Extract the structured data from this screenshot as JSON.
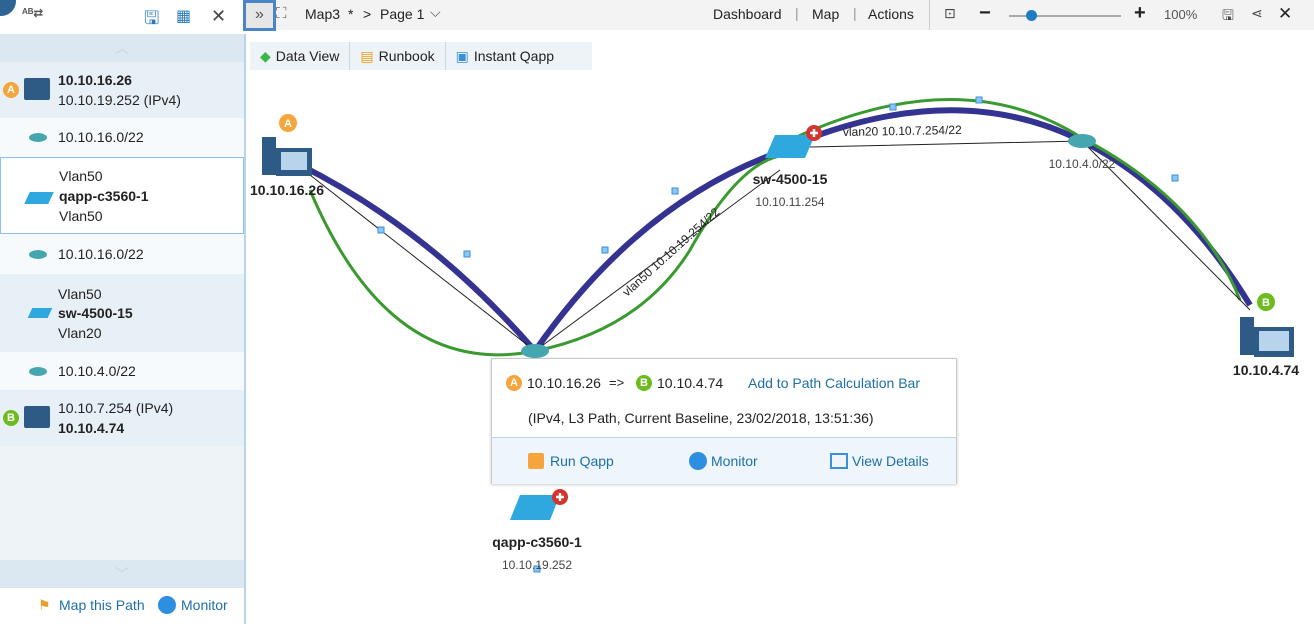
{
  "left_panel": {
    "items": [
      {
        "type": "device",
        "badge": "A",
        "line1": "10.10.16.26",
        "line2": "10.10.19.252 (IPv4)"
      },
      {
        "type": "subnet",
        "label": "10.10.16.0/22"
      },
      {
        "type": "switch",
        "line1": "Vlan50",
        "line2": "qapp-c3560-1",
        "line3": "Vlan50"
      },
      {
        "type": "subnet",
        "label": "10.10.16.0/22"
      },
      {
        "type": "switch",
        "line1": "Vlan50",
        "line2": "sw-4500-15",
        "line3": "Vlan20"
      },
      {
        "type": "subnet",
        "label": "10.10.4.0/22"
      },
      {
        "type": "device",
        "badge": "B",
        "line1": "10.10.7.254 (IPv4)",
        "line2": "10.10.4.74"
      }
    ],
    "footer": {
      "map_path": "Map this Path",
      "monitor": "Monitor"
    }
  },
  "topbar": {
    "map": "Map3",
    "modified": "*",
    "sep": ">",
    "page": "Page 1",
    "menu": [
      "Dashboard",
      "Map",
      "Actions"
    ],
    "zoom": "100%",
    "zoom_level": 0.2
  },
  "toolbar": {
    "data_view": "Data View",
    "runbook": "Runbook",
    "instant_qapp": "Instant Qapp"
  },
  "map": {
    "nodes": {
      "pcA": {
        "name": "10.10.16.26",
        "badge": "A"
      },
      "pcB": {
        "name": "10.10.4.74",
        "badge": "B"
      },
      "sw1": {
        "name": "sw-4500-15",
        "ip": "10.10.11.254"
      },
      "sw2": {
        "name": "qapp-c3560-1",
        "ip": "10.10.19.252"
      },
      "router2": {
        "label": "10.10.4.0/22"
      }
    },
    "links": {
      "vlan50": "vlan50 10.10.19.254/22",
      "vlan20": "vlan20 10.10.7.254/22"
    },
    "colors": {
      "path_blue": "#343391",
      "path_green": "#3a9a2f"
    }
  },
  "popup": {
    "src": "10.10.16.26",
    "arrow": "=>",
    "dst": "10.10.4.74",
    "add": "Add to Path Calculation Bar",
    "details": "(IPv4, L3 Path, Current Baseline, 23/02/2018, 13:51:36)",
    "run_qapp": "Run Qapp",
    "monitor": "Monitor",
    "view_details": "View Details"
  }
}
